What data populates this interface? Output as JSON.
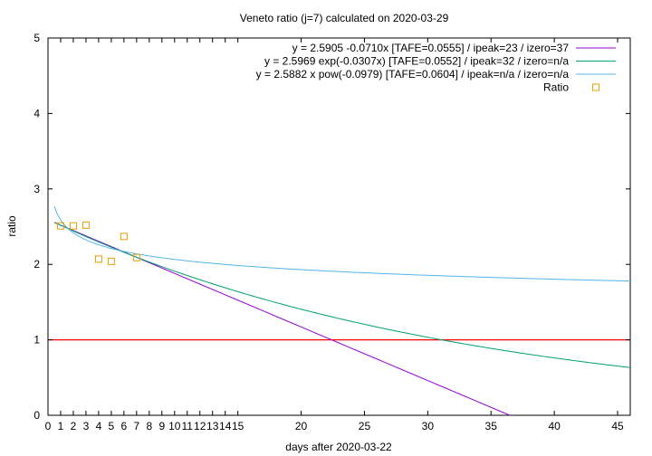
{
  "chart_data": {
    "type": "line",
    "title": "Veneto ratio (j=7) calculated on 2020-03-29",
    "xlabel": "days after 2020-03-22",
    "ylabel": "ratio",
    "xlim": [
      0,
      46
    ],
    "ylim": [
      0,
      5
    ],
    "x_ticks": [
      0,
      1,
      2,
      3,
      4,
      5,
      6,
      7,
      8,
      9,
      10,
      11,
      12,
      13,
      14,
      15,
      20,
      25,
      30,
      35,
      40,
      45
    ],
    "x_tick_labels": [
      "0",
      "1",
      "2",
      "3",
      "4",
      "5",
      "6",
      "7",
      "8",
      "9",
      "10",
      "11",
      "12",
      "13",
      "14",
      "15",
      "20",
      "25",
      "30",
      "35",
      "40",
      "45"
    ],
    "y_ticks": [
      0,
      1,
      2,
      3,
      4,
      5
    ],
    "y_tick_labels": [
      "0",
      "1",
      "2",
      "3",
      "4",
      "5"
    ],
    "grid": false,
    "legend_position": "top-right",
    "reference_line": {
      "y": 1,
      "color": "#ff0000"
    },
    "series": [
      {
        "name": "y = 2.5905 -0.0710x  [TAFE=0.0555] / ipeak=23 / izero=37",
        "model": "linear",
        "a": 2.5905,
        "b": -0.071,
        "x_range": [
          0.5,
          36.5
        ],
        "color": "#9400d3"
      },
      {
        "name": "y = 2.5969 exp(-0.0307x)  [TAFE=0.0552] / ipeak=32 / izero=n/a",
        "model": "exp",
        "a": 2.5969,
        "b": -0.0307,
        "x_range": [
          0.5,
          46
        ],
        "color": "#009e73"
      },
      {
        "name": "y = 2.5882 x pow(-0.0979)  [TAFE=0.0604] / ipeak=n/a / izero=n/a",
        "model": "pow",
        "a": 2.5882,
        "b": -0.0979,
        "x_range": [
          0.5,
          46
        ],
        "color": "#56b4e9"
      },
      {
        "name": "Ratio",
        "type": "scatter",
        "color": "#e69f00",
        "points": [
          [
            1,
            2.51
          ],
          [
            2,
            2.51
          ],
          [
            3,
            2.52
          ],
          [
            4,
            2.07
          ],
          [
            5,
            2.04
          ],
          [
            6,
            2.37
          ],
          [
            7,
            2.09
          ]
        ]
      }
    ]
  }
}
